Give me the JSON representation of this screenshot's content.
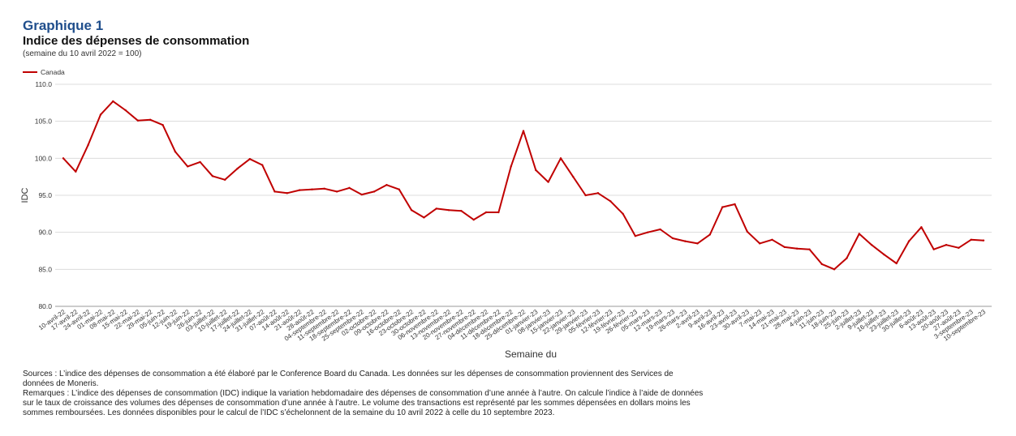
{
  "header": {
    "graph_number": "Graphique 1",
    "title": "Indice des dépenses de consommation",
    "subtitle": "(semaine du 10 avril 2022 = 100)"
  },
  "notes": {
    "sources": "Sources : L’indice des dépenses de consommation a été élaboré par le Conference Board du Canada. Les données sur les dépenses de consommation proviennent des Services de données de Moneris.",
    "remarks": "Remarques : L’indice des dépenses de consommation (IDC) indique la variation hebdomadaire des dépenses de consommation d’une année à l’autre. On calcule l’indice à l’aide de données sur le taux de croissance des volumes des dépenses de consommation d’une année à l’autre. Le volume des transactions est représenté par les sommes dépensées en dollars moins les sommes remboursées. Les données disponibles pour le calcul de l’IDC s’échelonnent de la semaine du 10 avril 2022 à celle du 10 septembre 2023."
  },
  "chart_data": {
    "type": "line",
    "title": "Indice des dépenses de consommation",
    "xlabel": "Semaine du",
    "ylabel": "IDC",
    "ylim": [
      80,
      110
    ],
    "yticks": [
      "80.0",
      "85.0",
      "90.0",
      "95.0",
      "100.0",
      "105.0",
      "110.0"
    ],
    "grid": true,
    "legend_position": "top-left",
    "line_color": "#c00000",
    "categories": [
      "10-avril-22",
      "17-avril-22",
      "24-avril-22",
      "01-mai-22",
      "08-mai-22",
      "15-mai-22",
      "22-mai-22",
      "29-mai-22",
      "05-juin-22",
      "12-juin-22",
      "19-juin-22",
      "26-juin-22",
      "03-juillet-22",
      "10-juillet-22",
      "17-juillet-22",
      "24-juillet-22",
      "31-juillet-22",
      "07-août-22",
      "14-août-22",
      "21-août-22",
      "28-août-22",
      "04-septembre-22",
      "11-septembre-22",
      "18-septembre-22",
      "25-septembre-22",
      "02-octobre-22",
      "09-octobre-22",
      "16-octobre-22",
      "23-octobre-22",
      "30-octobre-22",
      "06-novembre-22",
      "13-novembre-22",
      "20-novembre-22",
      "27-novembre-22",
      "04-décembre-22",
      "11-décembre-22",
      "18-décembre-22",
      "25-décembre-22",
      "01-janvier-23",
      "08-janvier-23",
      "15-janvier-23",
      "22-janvier-23",
      "29-janvier-23",
      "05-février-23",
      "12-février-23",
      "19-février-23",
      "26-février-23",
      "05-mars-23",
      "12-mars-23",
      "19-mars-23",
      "26-mars-23",
      "2-avril-23",
      "9-avril-23",
      "16-avril-23",
      "23-avril-23",
      "30-avril-23",
      "7-mai-23",
      "14-mai-23",
      "21-mai-23",
      "28-mai-23",
      "4-juin-23",
      "11-juin-23",
      "18-juin-23",
      "25-juin-23",
      "2-juillet-23",
      "9-juillet-23",
      "16-juillet-23",
      "23-juillet-23",
      "30-juillet-23",
      "6-août-23",
      "13-août-23",
      "20-août-23",
      "27-août-23",
      "3-septembre-23",
      "10-septembre-23"
    ],
    "series": [
      {
        "name": "Canada",
        "values": [
          100.0,
          98.2,
          101.8,
          105.9,
          107.7,
          106.5,
          105.1,
          105.2,
          104.5,
          100.9,
          98.9,
          99.5,
          97.6,
          97.1,
          98.6,
          99.9,
          99.1,
          95.5,
          95.3,
          95.7,
          95.8,
          95.9,
          95.5,
          96.0,
          95.1,
          95.5,
          96.4,
          95.8,
          93.0,
          92.0,
          93.2,
          93.0,
          92.9,
          91.7,
          92.7,
          92.7,
          98.9,
          103.7,
          98.4,
          96.8,
          100.0,
          97.5,
          95.0,
          95.3,
          94.2,
          92.5,
          89.5,
          90.0,
          90.4,
          89.2,
          88.8,
          88.5,
          89.7,
          93.4,
          93.8,
          90.1,
          88.5,
          89.0,
          88.0,
          87.8,
          87.7,
          85.7,
          85.0,
          86.5,
          89.8,
          88.3,
          87.0,
          85.8,
          88.8,
          90.7,
          87.7,
          88.3,
          87.9,
          89.0,
          88.9
        ]
      }
    ]
  }
}
